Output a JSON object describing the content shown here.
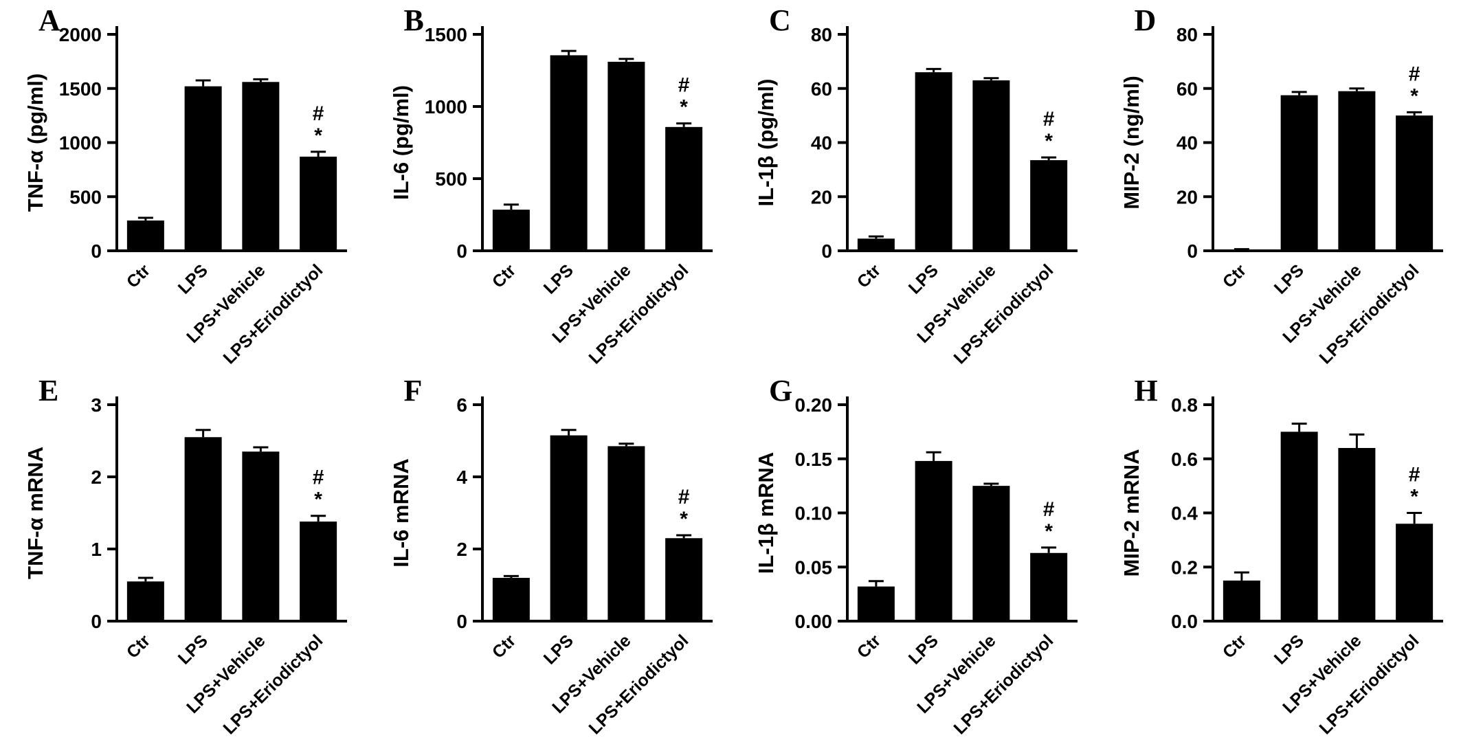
{
  "chart_data": [
    {
      "type": "bar",
      "panel_label": "A",
      "ylabel": "TNF-α (pg/ml)",
      "categories": [
        "Ctr",
        "LPS",
        "LPS+Vehicle",
        "LPS+Eriodictyol"
      ],
      "values": [
        280,
        1520,
        1560,
        870
      ],
      "errors": [
        25,
        55,
        25,
        45
      ],
      "ylim": [
        0,
        2000
      ],
      "yticks": [
        0,
        500,
        1000,
        1500,
        2000
      ],
      "ytick_labels": [
        "0",
        "500",
        "1000",
        "1500",
        "2000"
      ],
      "annotated_category": "LPS+Eriodictyol",
      "annotation_symbols": [
        "#",
        "*"
      ],
      "bar_color": "#000000",
      "grid": false,
      "legend": "none"
    },
    {
      "type": "bar",
      "panel_label": "B",
      "ylabel": "IL-6 (pg/ml)",
      "categories": [
        "Ctr",
        "LPS",
        "LPS+Vehicle",
        "LPS+Eriodictyol"
      ],
      "values": [
        285,
        1355,
        1310,
        858
      ],
      "errors": [
        35,
        30,
        20,
        25
      ],
      "ylim": [
        0,
        1500
      ],
      "yticks": [
        0,
        500,
        1000,
        1500
      ],
      "ytick_labels": [
        "0",
        "500",
        "1000",
        "1500"
      ],
      "annotated_category": "LPS+Eriodictyol",
      "annotation_symbols": [
        "#",
        "*"
      ],
      "bar_color": "#000000",
      "grid": false,
      "legend": "none"
    },
    {
      "type": "bar",
      "panel_label": "C",
      "ylabel": "IL-1β (pg/ml)",
      "categories": [
        "Ctr",
        "LPS",
        "LPS+Vehicle",
        "LPS+Eriodictyol"
      ],
      "values": [
        4.5,
        66,
        63,
        33.5
      ],
      "errors": [
        0.8,
        1.2,
        0.8,
        1.0
      ],
      "ylim": [
        0,
        80
      ],
      "yticks": [
        0,
        20,
        40,
        60,
        80
      ],
      "ytick_labels": [
        "0",
        "20",
        "40",
        "60",
        "80"
      ],
      "annotated_category": "LPS+Eriodictyol",
      "annotation_symbols": [
        "#",
        "*"
      ],
      "bar_color": "#000000",
      "grid": false,
      "legend": "none"
    },
    {
      "type": "bar",
      "panel_label": "D",
      "ylabel": "MIP-2 (ng/ml)",
      "categories": [
        "Ctr",
        "LPS",
        "LPS+Vehicle",
        "LPS+Eriodictyol"
      ],
      "values": [
        0.4,
        57.5,
        59,
        50
      ],
      "errors": [
        0.2,
        1.2,
        1.0,
        1.2
      ],
      "ylim": [
        0,
        80
      ],
      "yticks": [
        0,
        20,
        40,
        60,
        80
      ],
      "ytick_labels": [
        "0",
        "20",
        "40",
        "60",
        "80"
      ],
      "annotated_category": "LPS+Eriodictyol",
      "annotation_symbols": [
        "#",
        "*"
      ],
      "bar_color": "#000000",
      "grid": false,
      "legend": "none"
    },
    {
      "type": "bar",
      "panel_label": "E",
      "ylabel": "TNF-α mRNA",
      "categories": [
        "Ctr",
        "LPS",
        "LPS+Vehicle",
        "LPS+Eriodictyol"
      ],
      "values": [
        0.55,
        2.55,
        2.35,
        1.38
      ],
      "errors": [
        0.05,
        0.1,
        0.06,
        0.08
      ],
      "ylim": [
        0,
        3
      ],
      "yticks": [
        0,
        1,
        2,
        3
      ],
      "ytick_labels": [
        "0",
        "1",
        "2",
        "3"
      ],
      "annotated_category": "LPS+Eriodictyol",
      "annotation_symbols": [
        "#",
        "*"
      ],
      "bar_color": "#000000",
      "grid": false,
      "legend": "none"
    },
    {
      "type": "bar",
      "panel_label": "F",
      "ylabel": "IL-6 mRNA",
      "categories": [
        "Ctr",
        "LPS",
        "LPS+Vehicle",
        "LPS+Eriodictyol"
      ],
      "values": [
        1.2,
        5.15,
        4.85,
        2.3
      ],
      "errors": [
        0.05,
        0.15,
        0.07,
        0.08
      ],
      "ylim": [
        0,
        6
      ],
      "yticks": [
        0,
        2,
        4,
        6
      ],
      "ytick_labels": [
        "0",
        "2",
        "4",
        "6"
      ],
      "annotated_category": "LPS+Eriodictyol",
      "annotation_symbols": [
        "#",
        "*"
      ],
      "bar_color": "#000000",
      "grid": false,
      "legend": "none"
    },
    {
      "type": "bar",
      "panel_label": "G",
      "ylabel": "IL-1β mRNA",
      "categories": [
        "Ctr",
        "LPS",
        "LPS+Vehicle",
        "LPS+Eriodictyol"
      ],
      "values": [
        0.032,
        0.148,
        0.125,
        0.063
      ],
      "errors": [
        0.005,
        0.008,
        0.002,
        0.005
      ],
      "ylim": [
        0,
        0.2
      ],
      "yticks": [
        0,
        0.05,
        0.1,
        0.15,
        0.2
      ],
      "ytick_labels": [
        "0.00",
        "0.05",
        "0.10",
        "0.15",
        "0.20"
      ],
      "annotated_category": "LPS+Eriodictyol",
      "annotation_symbols": [
        "#",
        "*"
      ],
      "bar_color": "#000000",
      "grid": false,
      "legend": "none"
    },
    {
      "type": "bar",
      "panel_label": "H",
      "ylabel": "MIP-2 mRNA",
      "categories": [
        "Ctr",
        "LPS",
        "LPS+Vehicle",
        "LPS+Eriodictyol"
      ],
      "values": [
        0.15,
        0.7,
        0.64,
        0.36
      ],
      "errors": [
        0.03,
        0.03,
        0.05,
        0.04
      ],
      "ylim": [
        0,
        0.8
      ],
      "yticks": [
        0,
        0.2,
        0.4,
        0.6,
        0.8
      ],
      "ytick_labels": [
        "0.0",
        "0.2",
        "0.4",
        "0.6",
        "0.8"
      ],
      "annotated_category": "LPS+Eriodictyol",
      "annotation_symbols": [
        "#",
        "*"
      ],
      "bar_color": "#000000",
      "grid": false,
      "legend": "none"
    }
  ]
}
